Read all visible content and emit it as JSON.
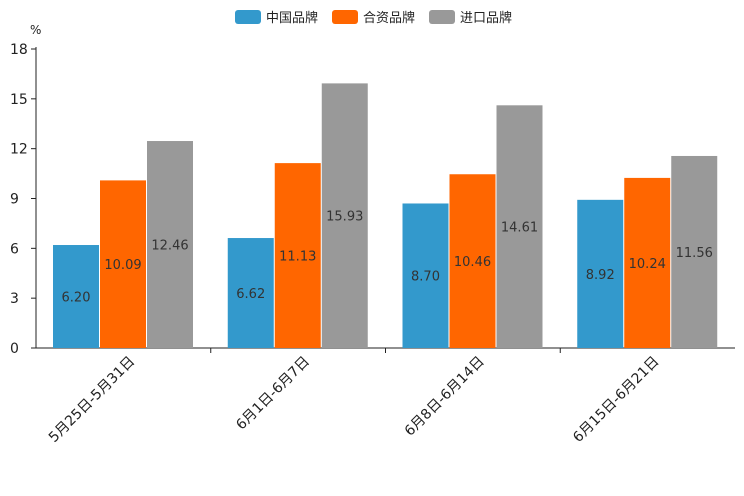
{
  "chart_data": {
    "type": "bar",
    "unit_label": "%",
    "categories": [
      "5月25日-5月31日",
      "6月1日-6月7日",
      "6月8日-6月14日",
      "6月15日-6月21日"
    ],
    "series": [
      {
        "name": "中国品牌",
        "color": "#3399CC",
        "values": [
          6.2,
          6.62,
          8.7,
          8.92
        ],
        "labels": [
          "6.20",
          "6.62",
          "8.70",
          "8.92"
        ]
      },
      {
        "name": "合资品牌",
        "color": "#FF6600",
        "values": [
          10.09,
          11.13,
          10.46,
          10.24
        ],
        "labels": [
          "10.09",
          "11.13",
          "10.46",
          "10.24"
        ]
      },
      {
        "name": "进口品牌",
        "color": "#999999",
        "values": [
          12.46,
          15.93,
          14.61,
          11.56
        ],
        "labels": [
          "12.46",
          "15.93",
          "14.61",
          "11.56"
        ]
      }
    ],
    "y_ticks": [
      "0",
      "3",
      "6",
      "9",
      "12",
      "15",
      "18"
    ],
    "ylim": [
      0,
      18
    ],
    "legend_position": "top-center"
  }
}
